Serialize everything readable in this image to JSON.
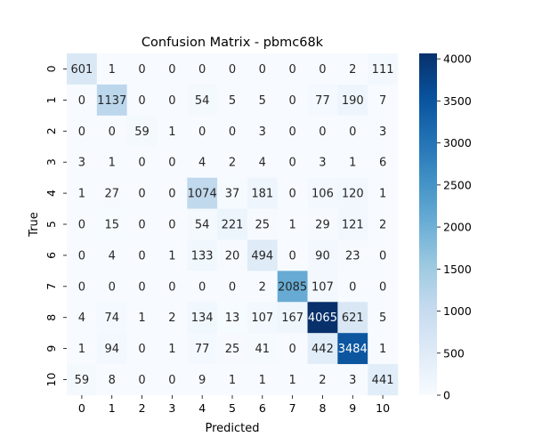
{
  "chart_data": {
    "type": "heatmap",
    "title": "Confusion Matrix - pbmc68k",
    "xlabel": "Predicted",
    "ylabel": "True",
    "x_categories": [
      "0",
      "1",
      "2",
      "3",
      "4",
      "5",
      "6",
      "7",
      "8",
      "9",
      "10"
    ],
    "y_categories": [
      "0",
      "1",
      "2",
      "3",
      "4",
      "5",
      "6",
      "7",
      "8",
      "9",
      "10"
    ],
    "matrix": [
      [
        601,
        1,
        0,
        0,
        0,
        0,
        0,
        0,
        0,
        2,
        111
      ],
      [
        0,
        1137,
        0,
        0,
        54,
        5,
        5,
        0,
        77,
        190,
        7
      ],
      [
        0,
        0,
        59,
        1,
        0,
        0,
        3,
        0,
        0,
        0,
        3
      ],
      [
        3,
        1,
        0,
        0,
        4,
        2,
        4,
        0,
        3,
        1,
        6
      ],
      [
        1,
        27,
        0,
        0,
        1074,
        37,
        181,
        0,
        106,
        120,
        1
      ],
      [
        0,
        15,
        0,
        0,
        54,
        221,
        25,
        1,
        29,
        121,
        2
      ],
      [
        0,
        4,
        0,
        1,
        133,
        20,
        494,
        0,
        90,
        23,
        0
      ],
      [
        0,
        0,
        0,
        0,
        0,
        0,
        2,
        2085,
        107,
        0,
        0
      ],
      [
        4,
        74,
        1,
        2,
        134,
        13,
        107,
        167,
        4065,
        621,
        5
      ],
      [
        1,
        94,
        0,
        1,
        77,
        25,
        41,
        0,
        442,
        3484,
        1
      ],
      [
        59,
        8,
        0,
        0,
        9,
        1,
        1,
        1,
        2,
        3,
        441
      ]
    ],
    "colorbar": {
      "colormap": "Blues",
      "vmin": 0,
      "vmax": 4065,
      "ticks": [
        "0",
        "500",
        "1000",
        "1500",
        "2000",
        "2500",
        "3000",
        "3500",
        "4000"
      ]
    }
  }
}
